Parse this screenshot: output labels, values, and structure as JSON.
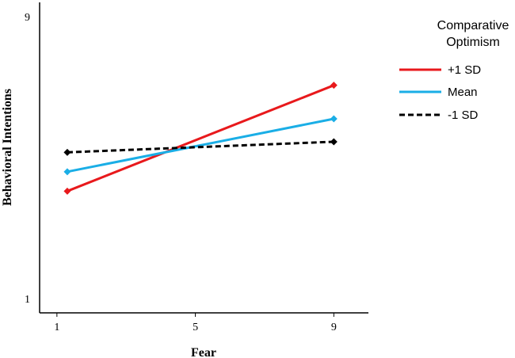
{
  "chart_data": {
    "type": "line",
    "xlabel": "Fear",
    "ylabel": "Behavioral Intentions",
    "xlim": [
      0.5,
      10
    ],
    "ylim": [
      0.6,
      9.4
    ],
    "x_ticks": [
      {
        "value": 1,
        "label": "1"
      },
      {
        "value": 5,
        "label": "5"
      },
      {
        "value": 9,
        "label": "9"
      }
    ],
    "y_ticks": [
      {
        "value": 1,
        "label": "1"
      },
      {
        "value": 9,
        "label": "9"
      }
    ],
    "grid": false,
    "legend": {
      "title_lines": [
        "Comparative",
        "Optimism"
      ],
      "position": "top-right"
    },
    "series": [
      {
        "name": "+1 SD",
        "color": "#e8191c",
        "style": "solid",
        "x": [
          1.3,
          9.0
        ],
        "y": [
          4.05,
          7.05
        ]
      },
      {
        "name": "Mean",
        "color": "#1aaee6",
        "style": "solid",
        "x": [
          1.3,
          9.0
        ],
        "y": [
          4.6,
          6.1
        ]
      },
      {
        "name": "-1 SD",
        "color": "#000000",
        "style": "dashed",
        "x": [
          1.3,
          9.0
        ],
        "y": [
          5.15,
          5.45
        ]
      }
    ]
  }
}
